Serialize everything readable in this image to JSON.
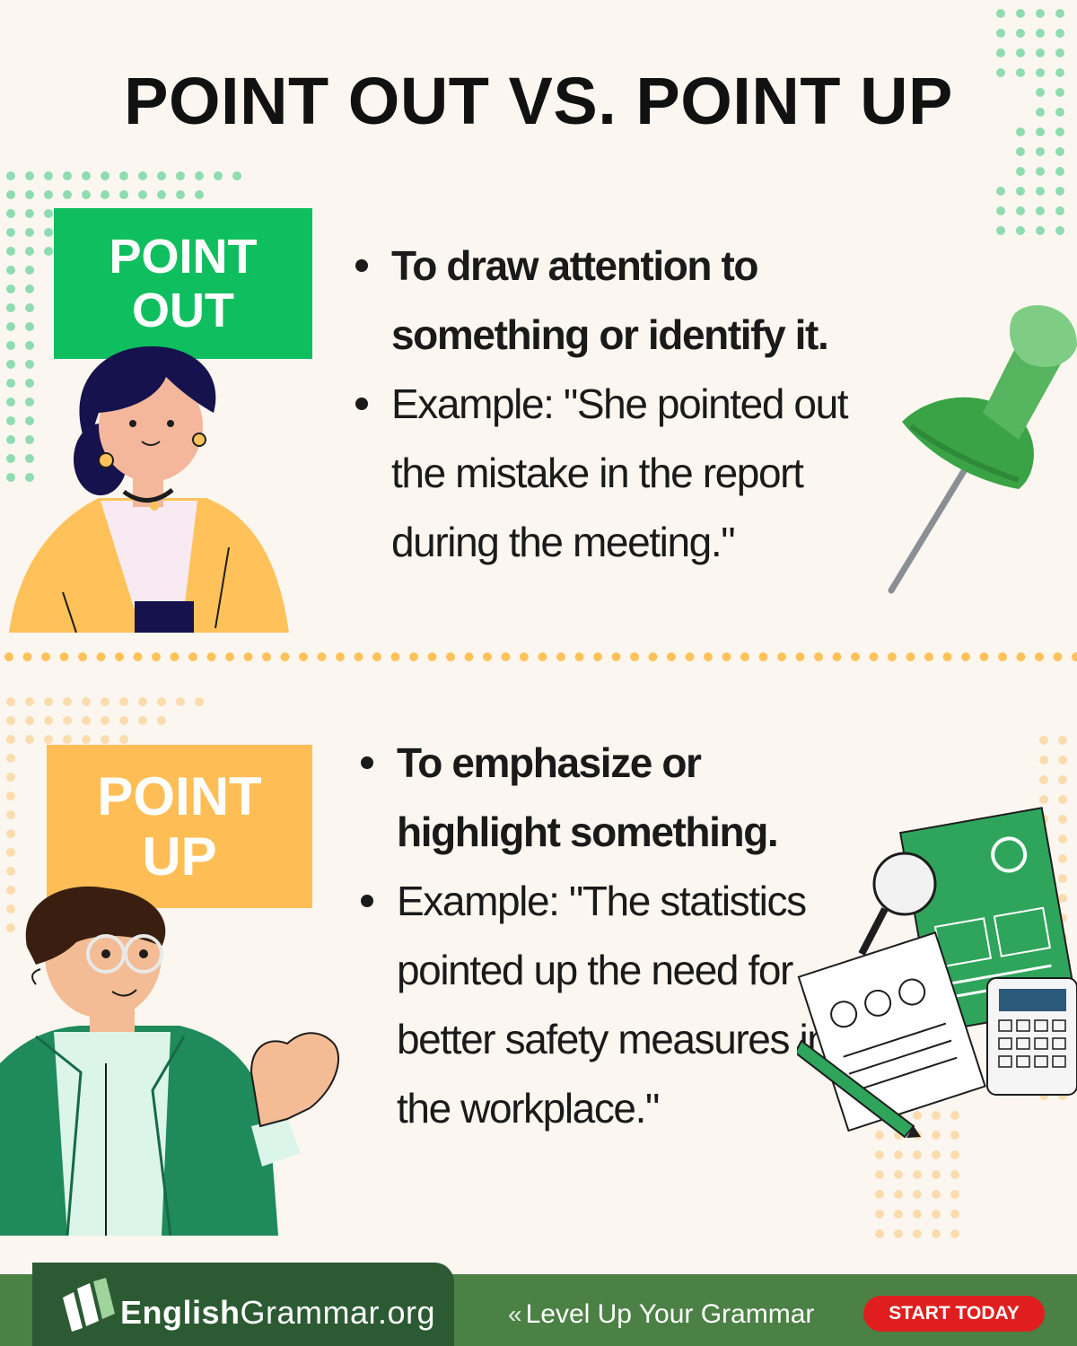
{
  "title": "POINT OUT VS. POINT UP",
  "sections": [
    {
      "label_line1": "POINT",
      "label_line2": "OUT",
      "label_color": "#0fbf5f",
      "definition": "To draw attention to something or identify it.",
      "example": "Example: \"She pointed out the mistake in the report during the meeting.\""
    },
    {
      "label_line1": "POINT",
      "label_line2": "UP",
      "label_color": "#ffbe55",
      "definition": "To emphasize or highlight something.",
      "example": "Example: \"The statistics pointed up the need for better safety measures in the workplace.\""
    }
  ],
  "footer": {
    "brand_bold": "English",
    "brand_light": "Grammar.org",
    "slogan": "Level Up Your Grammar",
    "cta_label": "START TODAY",
    "cta_color": "#e01e1e"
  }
}
